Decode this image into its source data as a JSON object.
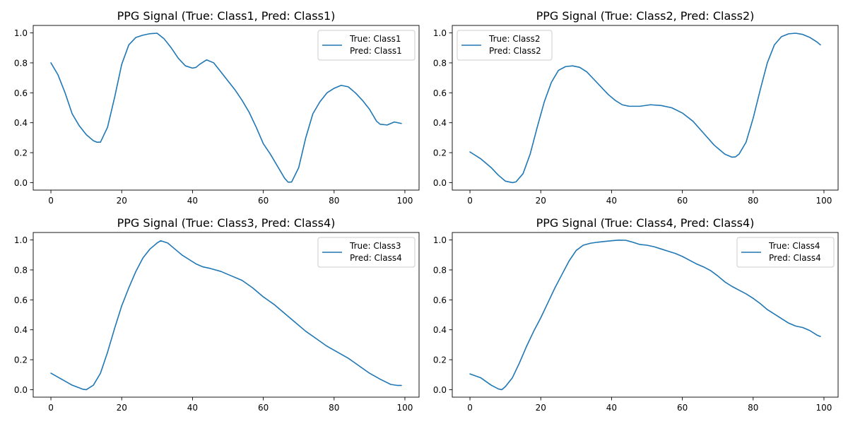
{
  "chart_data": [
    {
      "type": "line",
      "title": "PPG Signal (True: Class1, Pred: Class1)",
      "xlim": [
        -5,
        104
      ],
      "ylim": [
        -0.05,
        1.05
      ],
      "xticks": [
        0,
        20,
        40,
        60,
        80,
        100
      ],
      "yticks": [
        0.0,
        0.2,
        0.4,
        0.6,
        0.8,
        1.0
      ],
      "grid": false,
      "legend_placement": "upper right",
      "legend": [
        "True: Class1",
        "Pred: Class1"
      ],
      "series": [
        {
          "color": "#1f77b4",
          "x": [
            0,
            2,
            4,
            6,
            8,
            10,
            12,
            13,
            14,
            16,
            18,
            20,
            22,
            24,
            26,
            28,
            30,
            32,
            34,
            36,
            38,
            40,
            41,
            42,
            44,
            46,
            48,
            50,
            52,
            54,
            56,
            58,
            60,
            62,
            64,
            66,
            67,
            68,
            70,
            72,
            74,
            76,
            78,
            80,
            82,
            84,
            86,
            88,
            90,
            92,
            93,
            95,
            97,
            99
          ],
          "y": [
            0.8,
            0.72,
            0.6,
            0.46,
            0.38,
            0.32,
            0.28,
            0.27,
            0.27,
            0.37,
            0.57,
            0.79,
            0.92,
            0.97,
            0.985,
            0.995,
            0.998,
            0.96,
            0.9,
            0.83,
            0.78,
            0.765,
            0.77,
            0.79,
            0.82,
            0.8,
            0.74,
            0.68,
            0.62,
            0.55,
            0.47,
            0.37,
            0.26,
            0.19,
            0.11,
            0.03,
            0.003,
            0.004,
            0.1,
            0.3,
            0.46,
            0.54,
            0.6,
            0.63,
            0.65,
            0.64,
            0.6,
            0.55,
            0.49,
            0.41,
            0.39,
            0.385,
            0.405,
            0.395
          ]
        }
      ]
    },
    {
      "type": "line",
      "title": "PPG Signal (True: Class2, Pred: Class2)",
      "xlim": [
        -5,
        104
      ],
      "ylim": [
        -0.05,
        1.05
      ],
      "xticks": [
        0,
        20,
        40,
        60,
        80,
        100
      ],
      "yticks": [
        0.0,
        0.2,
        0.4,
        0.6,
        0.8,
        1.0
      ],
      "grid": false,
      "legend_placement": "upper left",
      "legend": [
        "True: Class2",
        "Pred: Class2"
      ],
      "series": [
        {
          "color": "#1f77b4",
          "x": [
            0,
            3,
            6,
            8,
            10,
            12,
            13,
            15,
            17,
            19,
            21,
            23,
            25,
            27,
            29,
            31,
            33,
            35,
            37,
            39,
            41,
            43,
            45,
            48,
            51,
            54,
            57,
            60,
            63,
            66,
            69,
            72,
            74,
            75,
            76,
            78,
            80,
            82,
            84,
            86,
            88,
            90,
            92,
            94,
            96,
            98,
            99
          ],
          "y": [
            0.205,
            0.16,
            0.1,
            0.05,
            0.01,
            0.0,
            0.005,
            0.06,
            0.19,
            0.37,
            0.54,
            0.67,
            0.75,
            0.775,
            0.78,
            0.77,
            0.74,
            0.69,
            0.64,
            0.59,
            0.55,
            0.52,
            0.51,
            0.51,
            0.52,
            0.515,
            0.5,
            0.465,
            0.41,
            0.33,
            0.25,
            0.19,
            0.17,
            0.172,
            0.19,
            0.27,
            0.43,
            0.62,
            0.8,
            0.92,
            0.975,
            0.994,
            0.998,
            0.99,
            0.97,
            0.94,
            0.92
          ]
        }
      ]
    },
    {
      "type": "line",
      "title": "PPG Signal (True: Class3, Pred: Class4)",
      "xlim": [
        -5,
        104
      ],
      "ylim": [
        -0.05,
        1.05
      ],
      "xticks": [
        0,
        20,
        40,
        60,
        80,
        100
      ],
      "yticks": [
        0.0,
        0.2,
        0.4,
        0.6,
        0.8,
        1.0
      ],
      "grid": false,
      "legend_placement": "upper right",
      "legend": [
        "True: Class3",
        "Pred: Class4"
      ],
      "series": [
        {
          "color": "#1f77b4",
          "x": [
            0,
            3,
            6,
            9,
            10,
            12,
            14,
            16,
            18,
            20,
            22,
            24,
            26,
            28,
            30,
            31,
            33,
            35,
            37,
            39,
            41,
            43,
            45,
            48,
            51,
            54,
            57,
            60,
            63,
            66,
            69,
            72,
            75,
            78,
            81,
            84,
            87,
            90,
            93,
            96,
            98,
            99
          ],
          "y": [
            0.11,
            0.07,
            0.03,
            0.003,
            0.0,
            0.03,
            0.11,
            0.25,
            0.41,
            0.56,
            0.68,
            0.79,
            0.88,
            0.94,
            0.98,
            0.995,
            0.98,
            0.94,
            0.9,
            0.87,
            0.84,
            0.82,
            0.81,
            0.79,
            0.76,
            0.73,
            0.68,
            0.62,
            0.57,
            0.51,
            0.45,
            0.39,
            0.34,
            0.29,
            0.25,
            0.21,
            0.16,
            0.11,
            0.07,
            0.035,
            0.028,
            0.028
          ]
        }
      ]
    },
    {
      "type": "line",
      "title": "PPG Signal (True: Class4, Pred: Class4)",
      "xlim": [
        -5,
        104
      ],
      "ylim": [
        -0.05,
        1.05
      ],
      "xticks": [
        0,
        20,
        40,
        60,
        80,
        100
      ],
      "yticks": [
        0.0,
        0.2,
        0.4,
        0.6,
        0.8,
        1.0
      ],
      "grid": false,
      "legend_placement": "upper right",
      "legend": [
        "True: Class4",
        "Pred: Class4"
      ],
      "series": [
        {
          "color": "#1f77b4",
          "x": [
            0,
            3,
            6,
            8,
            9,
            10,
            12,
            14,
            16,
            18,
            20,
            22,
            24,
            26,
            28,
            30,
            32,
            34,
            36,
            38,
            40,
            42,
            44,
            46,
            48,
            50,
            52,
            54,
            56,
            58,
            60,
            62,
            64,
            66,
            68,
            70,
            72,
            74,
            76,
            78,
            80,
            82,
            84,
            86,
            88,
            90,
            92,
            94,
            96,
            98,
            99
          ],
          "y": [
            0.105,
            0.08,
            0.03,
            0.005,
            0.0,
            0.02,
            0.08,
            0.18,
            0.29,
            0.39,
            0.48,
            0.58,
            0.68,
            0.77,
            0.86,
            0.93,
            0.965,
            0.978,
            0.985,
            0.99,
            0.995,
            0.999,
            0.998,
            0.985,
            0.97,
            0.965,
            0.955,
            0.94,
            0.925,
            0.91,
            0.89,
            0.865,
            0.84,
            0.82,
            0.795,
            0.76,
            0.72,
            0.69,
            0.665,
            0.64,
            0.61,
            0.575,
            0.535,
            0.505,
            0.475,
            0.445,
            0.425,
            0.415,
            0.395,
            0.365,
            0.355
          ]
        }
      ]
    }
  ]
}
